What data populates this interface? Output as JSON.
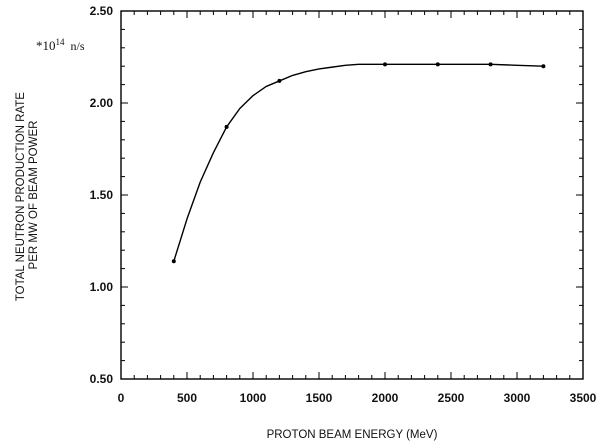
{
  "chart_data": {
    "type": "line",
    "title": "",
    "xlabel": "PROTON BEAM ENERGY (MeV)",
    "ylabel": [
      "TOTAL NEUTRON PRODUCTION RATE",
      "PER MW OF BEAM POWER"
    ],
    "annotation": {
      "prefix": "*10",
      "exponent": "14",
      "unit": "n/s"
    },
    "xlim": [
      0,
      3500
    ],
    "ylim": [
      0.5,
      2.5
    ],
    "x_ticks": [
      0,
      500,
      1000,
      1500,
      2000,
      2500,
      3000,
      3500
    ],
    "y_ticks": [
      0.5,
      1.0,
      1.5,
      2.0,
      2.5
    ],
    "y_tick_labels": [
      "0.50",
      "1.00",
      "1.50",
      "2.00",
      "2.50"
    ],
    "grid": false,
    "series": [
      {
        "points": [
          {
            "x": 400,
            "y": 1.14
          },
          {
            "x": 800,
            "y": 1.87
          },
          {
            "x": 1200,
            "y": 2.12
          },
          {
            "x": 2000,
            "y": 2.21
          },
          {
            "x": 2400,
            "y": 2.21
          },
          {
            "x": 2800,
            "y": 2.21
          },
          {
            "x": 3200,
            "y": 2.2
          }
        ],
        "curve": [
          [
            400,
            1.14
          ],
          [
            500,
            1.37
          ],
          [
            600,
            1.57
          ],
          [
            700,
            1.73
          ],
          [
            800,
            1.87
          ],
          [
            900,
            1.97
          ],
          [
            1000,
            2.04
          ],
          [
            1100,
            2.09
          ],
          [
            1200,
            2.12
          ],
          [
            1300,
            2.15
          ],
          [
            1400,
            2.17
          ],
          [
            1500,
            2.185
          ],
          [
            1600,
            2.195
          ],
          [
            1700,
            2.205
          ],
          [
            1800,
            2.21
          ],
          [
            2000,
            2.21
          ],
          [
            2200,
            2.21
          ],
          [
            2400,
            2.21
          ],
          [
            2600,
            2.21
          ],
          [
            2800,
            2.21
          ],
          [
            3000,
            2.205
          ],
          [
            3200,
            2.2
          ]
        ]
      }
    ]
  }
}
